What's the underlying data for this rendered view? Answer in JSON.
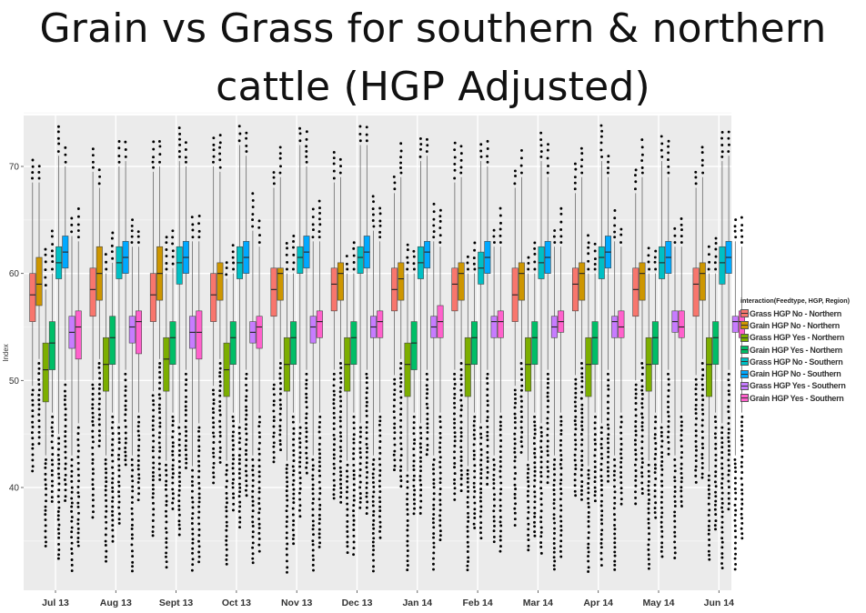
{
  "title_line1": "Grain vs Grass for southern & northern",
  "title_line2": "cattle (HGP Adjusted)",
  "chart_data": {
    "type": "boxplot",
    "ylabel": "Index",
    "xlabel": "",
    "ylim": [
      31,
      76
    ],
    "yticks": [
      40,
      50,
      60,
      70
    ],
    "grid": true,
    "legend_position": "right",
    "legend_title": "interaction(Feedtype, HGP, Region)",
    "categories": [
      "Jul 13",
      "Aug 13",
      "Sept 13",
      "Oct 13",
      "Nov 13",
      "Dec 13",
      "Jan 14",
      "Feb 14",
      "Mar 14",
      "Apr 14",
      "May 14",
      "Jun 14"
    ],
    "series": [
      {
        "name": "Grass HGP No - Northern",
        "color": "#F8766D",
        "medians": [
          58,
          58.5,
          58,
          58,
          58.5,
          59,
          58.5,
          59,
          58,
          59,
          58.5,
          59
        ],
        "q1": [
          55.5,
          56,
          55.5,
          55.5,
          56,
          56.5,
          56.5,
          56.5,
          55.5,
          56.5,
          56,
          56
        ],
        "q3": [
          60,
          60.5,
          60,
          60,
          60.5,
          60.5,
          60.5,
          60.5,
          60.5,
          60.5,
          60.5,
          60.5
        ],
        "whisker_low": [
          49.5,
          50,
          49,
          49.5,
          50,
          51,
          50.5,
          51,
          49.5,
          50.5,
          50,
          50.5
        ],
        "whisker_high": [
          68.5,
          69.5,
          69.5,
          70,
          68,
          68.5,
          67.5,
          68.5,
          68,
          67.5,
          67.5,
          68
        ]
      },
      {
        "name": "Grain HGP No - Northern",
        "color": "#CD9600",
        "medians": [
          59,
          60,
          60,
          60,
          60,
          60,
          59.5,
          60,
          60,
          60,
          60,
          60
        ],
        "q1": [
          57,
          57.5,
          57.5,
          57.5,
          57.5,
          57.5,
          57.5,
          57.5,
          57.5,
          57.5,
          57.5,
          57.5
        ],
        "q3": [
          61.5,
          62.5,
          62.5,
          61,
          60.5,
          61,
          61,
          61,
          61,
          61,
          61,
          61
        ],
        "whisker_low": [
          52,
          52,
          52,
          52,
          52,
          52,
          52,
          52,
          52,
          52,
          52,
          52
        ],
        "whisker_high": [
          68.5,
          68,
          70,
          69.5,
          69,
          69,
          69,
          69,
          69,
          69,
          69,
          69
        ]
      },
      {
        "name": "Grass HGP Yes - Northern",
        "color": "#7CAE00",
        "medians": [
          51,
          51.5,
          52,
          51,
          51.5,
          51.5,
          51.5,
          51.5,
          51.5,
          51.5,
          51.5,
          51.5
        ],
        "q1": [
          48,
          49,
          49,
          48.5,
          49,
          49,
          48.5,
          48.5,
          49,
          48.5,
          49,
          48.5
        ],
        "q3": [
          53.5,
          54,
          54,
          53.5,
          54,
          54,
          53.5,
          54,
          54,
          54,
          54,
          54
        ],
        "whisker_low": [
          43,
          43,
          42.5,
          42.5,
          42.5,
          42.5,
          41.5,
          42,
          42.5,
          42,
          42.5,
          41.5
        ],
        "whisker_high": [
          58.5,
          60,
          60,
          59.5,
          60,
          60,
          60,
          60,
          60,
          60,
          60,
          60
        ]
      },
      {
        "name": "Grain HGP Yes - Northern",
        "color": "#00BE67",
        "medians": [
          53.5,
          54,
          54,
          54,
          54,
          54,
          53.5,
          54,
          54,
          54,
          54,
          54
        ],
        "q1": [
          51,
          51.5,
          51.5,
          51.5,
          51.5,
          51.5,
          51,
          51.5,
          51.5,
          51.5,
          51.5,
          51.5
        ],
        "q3": [
          55.5,
          56,
          55.5,
          55.5,
          55.5,
          55.5,
          55.5,
          55.5,
          55.5,
          55.5,
          55.5,
          55.5
        ],
        "whisker_low": [
          47,
          47,
          47,
          47,
          47,
          47,
          47,
          47,
          47,
          47,
          47,
          47
        ],
        "whisker_high": [
          60,
          61,
          60.5,
          60,
          60,
          60,
          60,
          60,
          60,
          60,
          60,
          60
        ]
      },
      {
        "name": "Grass HGP No - Southern",
        "color": "#00BFC4",
        "medians": [
          61,
          61,
          61,
          61,
          61.5,
          61.5,
          61,
          60.5,
          61,
          61.5,
          61,
          61
        ],
        "q1": [
          59.5,
          59.5,
          59,
          59.5,
          60,
          60,
          59.5,
          59,
          59.5,
          59.5,
          59.5,
          59
        ],
        "q3": [
          62.5,
          62.5,
          62.5,
          62.5,
          62.5,
          62.5,
          62.5,
          62,
          62.5,
          62.5,
          62.5,
          62.5
        ],
        "whisker_low": [
          45,
          46,
          46,
          46,
          46,
          46,
          46,
          46,
          46,
          46,
          46,
          46
        ],
        "whisker_high": [
          71,
          70,
          70.5,
          72,
          72,
          72,
          70.5,
          70.5,
          70.5,
          70.5,
          70.5,
          70.5
        ]
      },
      {
        "name": "Grain HGP No - Southern",
        "color": "#00A9FF",
        "medians": [
          62,
          61.5,
          61.5,
          61.5,
          62,
          62,
          62,
          61.5,
          61.5,
          62,
          61.5,
          61.5
        ],
        "q1": [
          60.5,
          60,
          60,
          60,
          60.5,
          60.5,
          60.5,
          60,
          60,
          60.5,
          60,
          60
        ],
        "q3": [
          63.5,
          63,
          63,
          63,
          63.5,
          63.5,
          63,
          63,
          63,
          63.5,
          63,
          63
        ],
        "whisker_low": [
          50,
          51,
          51,
          51,
          51,
          51,
          51,
          51,
          51,
          51,
          51,
          51
        ],
        "whisker_high": [
          70,
          70.5,
          70,
          71,
          70,
          72,
          71,
          70,
          69,
          69,
          69,
          71
        ]
      },
      {
        "name": "Grass HGP Yes - Southern",
        "color": "#C77CFF",
        "medians": [
          54.5,
          55,
          54.5,
          54.5,
          55,
          55,
          55,
          55.5,
          55,
          55.5,
          55.5,
          55.5
        ],
        "q1": [
          53,
          53.5,
          53,
          53.5,
          53.5,
          54,
          54,
          54,
          54,
          54,
          54.5,
          54.5
        ],
        "q3": [
          56,
          56,
          56,
          55.5,
          56,
          56,
          56,
          56,
          56,
          56,
          56.5,
          56
        ],
        "whisker_low": [
          43,
          43,
          42,
          43,
          43,
          43,
          43,
          43,
          43,
          43,
          43,
          43
        ],
        "whisker_high": [
          63.5,
          62.5,
          63,
          64,
          63,
          64,
          63,
          62.5,
          62.5,
          63,
          62.5,
          63
        ]
      },
      {
        "name": "Grain HGP Yes - Southern",
        "color": "#FF61CC",
        "medians": [
          55,
          55.5,
          54.5,
          55,
          55.5,
          55.5,
          55.5,
          55.5,
          55.5,
          55,
          55,
          55.5
        ],
        "q1": [
          52,
          52.5,
          52,
          53,
          54,
          54,
          54,
          54,
          54.5,
          54,
          54,
          54
        ],
        "q3": [
          56.5,
          56.5,
          56.5,
          56,
          56.5,
          56.5,
          57,
          56.5,
          56.5,
          56.5,
          56.5,
          56.5
        ],
        "whisker_low": [
          46,
          47,
          46,
          47,
          47,
          47,
          47,
          47,
          47,
          47,
          47,
          47
        ],
        "whisker_high": [
          63,
          62.5,
          63,
          62.5,
          63,
          63,
          62.5,
          62.5,
          62.5,
          62.5,
          62.5,
          62.5
        ]
      }
    ]
  }
}
